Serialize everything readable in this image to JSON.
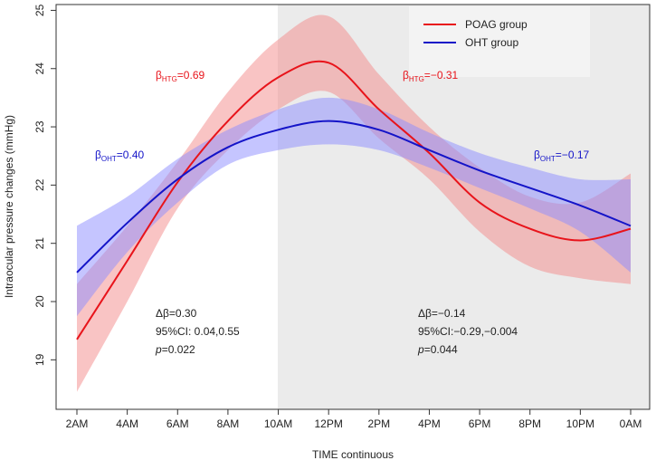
{
  "chart_data": {
    "type": "line",
    "x_label": "TIME continuous",
    "y_label": "Intraocular pressure changes  (mmHg)",
    "categories": [
      "2AM",
      "4AM",
      "6AM",
      "8AM",
      "10AM",
      "12PM",
      "2PM",
      "4PM",
      "6PM",
      "8PM",
      "10PM",
      "0AM"
    ],
    "series": [
      {
        "name": "POAG group",
        "color": "#e8141b",
        "band_color": "#f48a8a",
        "values": [
          19.35,
          20.7,
          22.05,
          23.1,
          23.85,
          24.1,
          23.3,
          22.55,
          21.7,
          21.25,
          21.05,
          21.25
        ],
        "lower": [
          18.45,
          20.0,
          21.6,
          22.6,
          23.3,
          23.6,
          22.8,
          22.1,
          21.2,
          20.6,
          20.4,
          20.3
        ],
        "upper": [
          20.3,
          21.3,
          22.4,
          23.6,
          24.5,
          24.9,
          23.9,
          23.0,
          22.3,
          21.8,
          21.7,
          22.2
        ]
      },
      {
        "name": "OHT group",
        "color": "#1414c8",
        "band_color": "#8c8cff",
        "values": [
          20.5,
          21.35,
          22.1,
          22.65,
          22.95,
          23.1,
          22.95,
          22.6,
          22.25,
          21.95,
          21.65,
          21.3
        ],
        "lower": [
          19.75,
          20.85,
          21.7,
          22.35,
          22.6,
          22.7,
          22.6,
          22.3,
          21.95,
          21.6,
          21.2,
          20.5
        ],
        "upper": [
          21.3,
          21.8,
          22.45,
          22.95,
          23.3,
          23.5,
          23.3,
          22.9,
          22.55,
          22.3,
          22.1,
          22.1
        ]
      }
    ],
    "ylim": [
      18.15,
      25.1
    ],
    "yticks": [
      19,
      20,
      21,
      22,
      23,
      24,
      25
    ],
    "legend": "top-right",
    "annotations": [
      {
        "symbol": "β",
        "sub": "HTG",
        "text": "=0.69",
        "color": "#e8141b"
      },
      {
        "symbol": "β",
        "sub": "HTG",
        "text": "=−0.31",
        "color": "#e8141b"
      },
      {
        "symbol": "β",
        "sub": "OHT",
        "text": "=0.40",
        "color": "#1414c8"
      },
      {
        "symbol": "β",
        "sub": "OHT",
        "text": "=−0.17",
        "color": "#1414c8"
      }
    ],
    "stats": [
      {
        "delta": "Δβ=0.30",
        "ci": "95%CI: 0.04,0.55",
        "p": "p",
        "p_text": "=0.022"
      },
      {
        "delta": "Δβ=−0.14",
        "ci": "95%CI:−0.29,−0.004",
        "p": "p",
        "p_text": "=0.044"
      }
    ]
  }
}
